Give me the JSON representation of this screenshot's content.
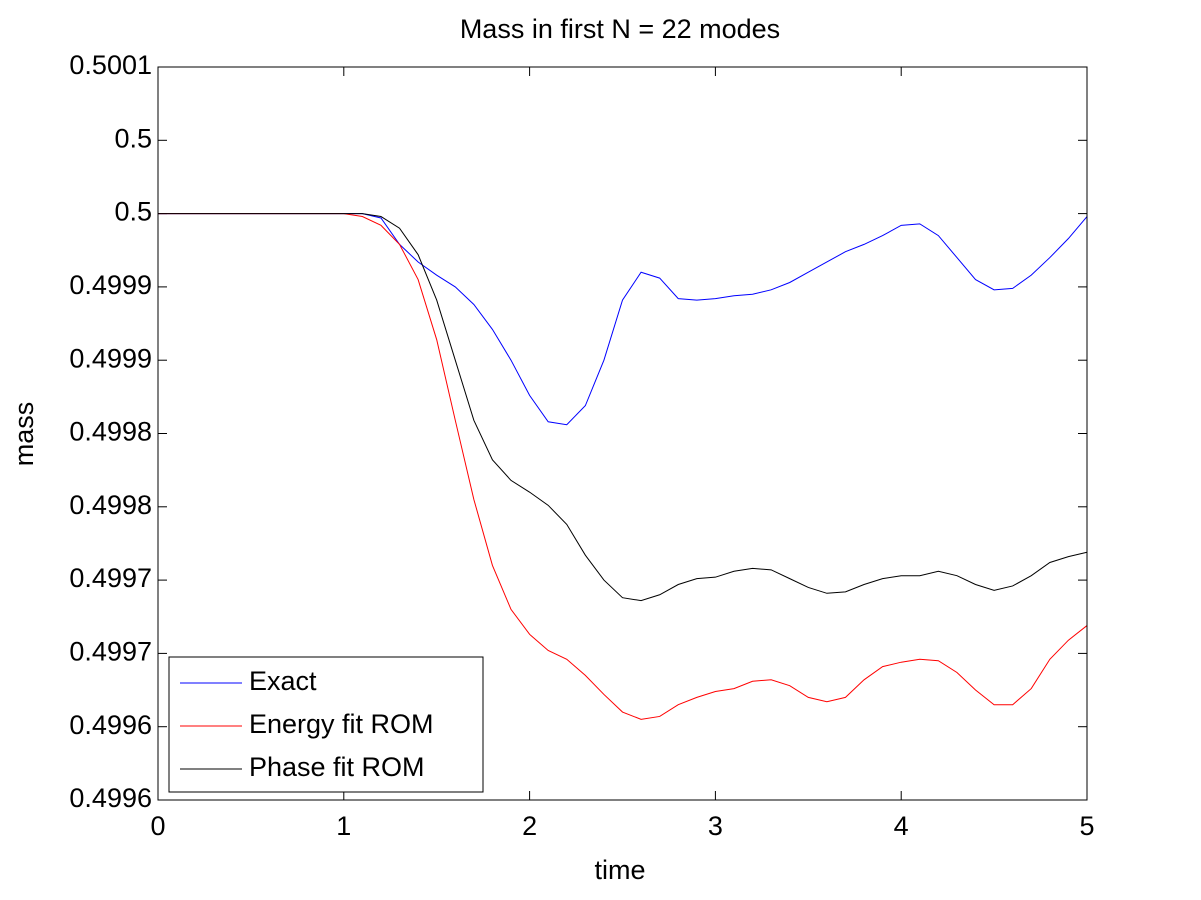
{
  "chart_data": {
    "type": "line",
    "title": "Mass in first N = 22 modes",
    "xlabel": "time",
    "ylabel": "mass",
    "x": [
      0,
      1,
      1.1,
      1.2,
      1.3,
      1.4,
      1.5,
      1.6,
      1.7,
      1.8,
      1.9,
      2,
      2.1,
      2.2,
      2.3,
      2.4,
      2.5,
      2.6,
      2.7,
      2.8,
      2.9,
      3,
      3.1,
      3.2,
      3.3,
      3.4,
      3.5,
      3.6,
      3.7,
      3.8,
      3.9,
      4,
      4.1,
      4.2,
      4.3,
      4.4,
      4.5,
      4.6,
      4.7,
      4.8,
      4.9,
      5
    ],
    "series": [
      {
        "name": "Exact",
        "color": "#0000ff",
        "values": [
          0.49995,
          0.49995,
          0.49995,
          0.499947,
          0.499929,
          0.499917,
          0.499908,
          0.4999,
          0.499888,
          0.499871,
          0.49985,
          0.499826,
          0.499808,
          0.499806,
          0.499819,
          0.49985,
          0.499891,
          0.49991,
          0.499906,
          0.499892,
          0.499891,
          0.499892,
          0.499894,
          0.499895,
          0.499898,
          0.499903,
          0.49991,
          0.499917,
          0.499924,
          0.499929,
          0.499935,
          0.499942,
          0.499943,
          0.499935,
          0.49992,
          0.499905,
          0.499898,
          0.499899,
          0.499908,
          0.49992,
          0.499933,
          0.499948
        ]
      },
      {
        "name": "Energy fit ROM",
        "color": "#ff0000",
        "values": [
          0.49995,
          0.49995,
          0.499948,
          0.499942,
          0.499929,
          0.499905,
          0.499864,
          0.499809,
          0.499755,
          0.49971,
          0.49968,
          0.499663,
          0.499652,
          0.499646,
          0.499635,
          0.499622,
          0.49961,
          0.499605,
          0.499607,
          0.499615,
          0.49962,
          0.499624,
          0.499626,
          0.499631,
          0.499632,
          0.499628,
          0.49962,
          0.499617,
          0.49962,
          0.499632,
          0.499641,
          0.499644,
          0.499646,
          0.499645,
          0.499637,
          0.499625,
          0.499615,
          0.499615,
          0.499626,
          0.499646,
          0.499659,
          0.499669
        ]
      },
      {
        "name": "Phase fit ROM",
        "color": "#000000",
        "values": [
          0.49995,
          0.49995,
          0.49995,
          0.499948,
          0.49994,
          0.499922,
          0.499891,
          0.49985,
          0.499809,
          0.499782,
          0.499768,
          0.49976,
          0.499751,
          0.499738,
          0.499717,
          0.4997,
          0.499688,
          0.499686,
          0.49969,
          0.499697,
          0.499701,
          0.499702,
          0.499706,
          0.499708,
          0.499707,
          0.499701,
          0.499695,
          0.499691,
          0.499692,
          0.499697,
          0.499701,
          0.499703,
          0.499703,
          0.499706,
          0.499703,
          0.499697,
          0.499693,
          0.499696,
          0.499703,
          0.499712,
          0.499716,
          0.499719
        ]
      }
    ],
    "xlim": [
      0,
      5
    ],
    "xticks": [
      0,
      1,
      2,
      3,
      4,
      5
    ],
    "ylim": [
      0.49955,
      0.50005
    ],
    "yticks": [
      {
        "value": 0.49955,
        "label": "0.4996"
      },
      0.4996,
      {
        "value": 0.49965,
        "label": "0.4997"
      },
      0.4997,
      {
        "value": 0.49975,
        "label": "0.4998"
      },
      0.4998,
      {
        "value": 0.49985,
        "label": "0.4999"
      },
      0.4999,
      {
        "value": 0.49995,
        "label": "0.5"
      },
      {
        "value": 0.5,
        "label": "0.5"
      },
      {
        "value": 0.50005,
        "label": "0.5001"
      }
    ],
    "grid": false,
    "legend": "lower left"
  }
}
